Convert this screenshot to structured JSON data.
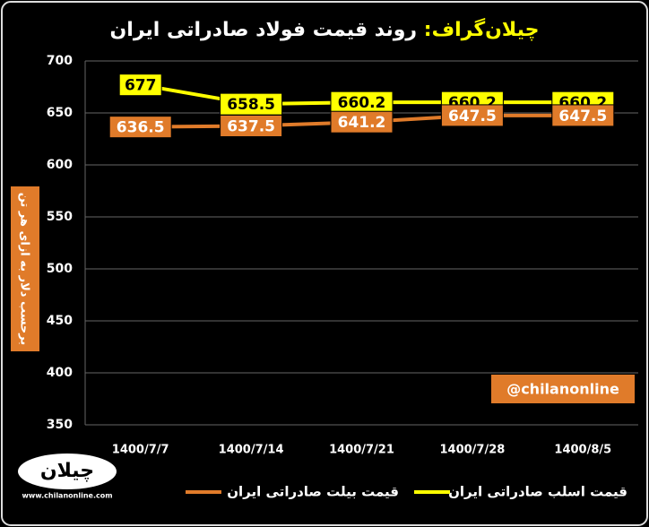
{
  "chart_data": {
    "type": "line",
    "title_prefix": "چیلان‌گراف:",
    "title": "روند قیمت فولاد صادراتی ایران",
    "y_label": "برحسب دلار به ازای هر تن",
    "watermark": "@chilanonline",
    "logo": "چیلان",
    "logo_url": "www.chilanonline.com",
    "categories": [
      "1400/7/7",
      "1400/7/14",
      "1400/7/21",
      "1400/7/28",
      "1400/8/5"
    ],
    "series": [
      {
        "name": "قیمت اسلب صادراتی ایران",
        "color": "#ffff00",
        "label_text_color": "#000000",
        "values": [
          677,
          658.5,
          660.2,
          660.2,
          660.2
        ]
      },
      {
        "name": "قیمت بیلت صادراتی ایران",
        "color": "#e07b2a",
        "label_text_color": "#ffffff",
        "values": [
          636.5,
          637.5,
          641.2,
          647.5,
          647.5
        ]
      }
    ],
    "ylim": [
      350,
      700
    ],
    "yticks": [
      350,
      400,
      450,
      500,
      550,
      600,
      650,
      700
    ],
    "grid": true
  }
}
